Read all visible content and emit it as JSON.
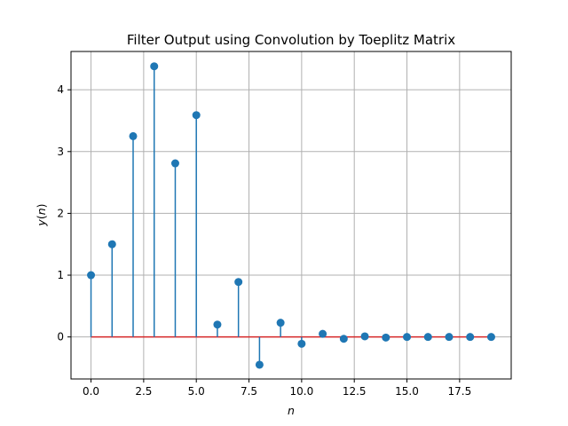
{
  "chart_data": {
    "type": "stem",
    "title": "Filter Output using Convolution by Toeplitz Matrix",
    "xlabel": "n",
    "ylabel": "y(n)",
    "xlim": [
      -0.95,
      19.95
    ],
    "ylim": [
      -0.68,
      4.62
    ],
    "xticks": [
      0.0,
      2.5,
      5.0,
      7.5,
      10.0,
      12.5,
      15.0,
      17.5
    ],
    "xtick_labels": [
      "0.0",
      "2.5",
      "5.0",
      "7.5",
      "10.0",
      "12.5",
      "15.0",
      "17.5"
    ],
    "yticks": [
      0,
      1,
      2,
      3,
      4
    ],
    "ytick_labels": [
      "0",
      "1",
      "2",
      "3",
      "4"
    ],
    "grid": true,
    "baseline": 0,
    "colors": {
      "marker": "#1f77b4",
      "stem": "#1f77b4",
      "baseline": "#d62728"
    },
    "x": [
      0,
      1,
      2,
      3,
      4,
      5,
      6,
      7,
      8,
      9,
      10,
      11,
      12,
      13,
      14,
      15,
      16,
      17,
      18,
      19
    ],
    "y": [
      1.0,
      1.5,
      3.25,
      4.38,
      2.81,
      3.59,
      0.2,
      0.89,
      -0.45,
      0.23,
      -0.11,
      0.05,
      -0.03,
      0.01,
      -0.01,
      0.0,
      0.0,
      0.0,
      0.0,
      0.0
    ]
  }
}
